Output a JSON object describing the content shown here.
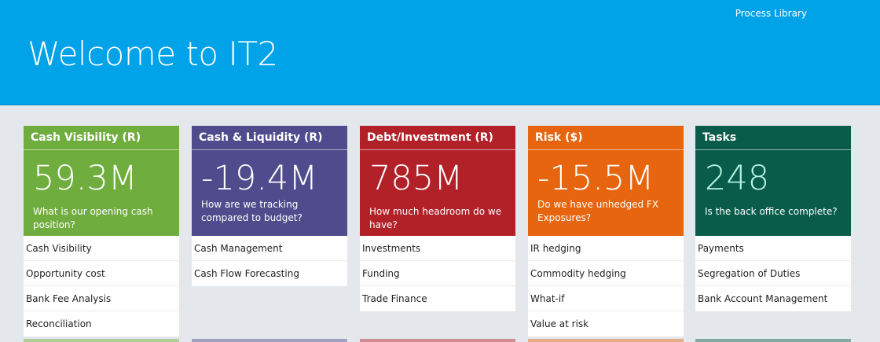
{
  "header": {
    "nav_link": "Process Library",
    "title": "Welcome to IT2"
  },
  "tiles": [
    {
      "title": "Cash Visibility (R)",
      "metric": "59.3M",
      "question": "What is our opening cash position?",
      "color": "#70ad3f",
      "links": [
        "Cash Visibility",
        "Opportunity cost",
        "Bank Fee Analysis",
        "Reconciliation"
      ]
    },
    {
      "title": "Cash & Liquidity (R)",
      "metric": "-19.4M",
      "question": "How are we tracking compared to budget?",
      "color": "#4f4b8c",
      "links": [
        "Cash Management",
        "Cash Flow Forecasting"
      ]
    },
    {
      "title": "Debt/Investment (R)",
      "metric": "785M",
      "question": "How much headroom do we have?",
      "color": "#b22028",
      "links": [
        "Investments",
        "Funding",
        "Trade Finance"
      ]
    },
    {
      "title": "Risk ($)",
      "metric": "-15.5M",
      "question": "Do we have unhedged FX Exposures?",
      "color": "#e7650e",
      "links": [
        "IR hedging",
        "Commodity hedging",
        "What-if",
        "Value at risk"
      ]
    },
    {
      "title": "Tasks",
      "metric": "248",
      "question": "Is the back office complete?",
      "color": "#0a5c4a",
      "metric_color": "#b6f5e4",
      "links": [
        "Payments",
        "Segregation of Duties",
        "Bank Account Management"
      ]
    }
  ]
}
